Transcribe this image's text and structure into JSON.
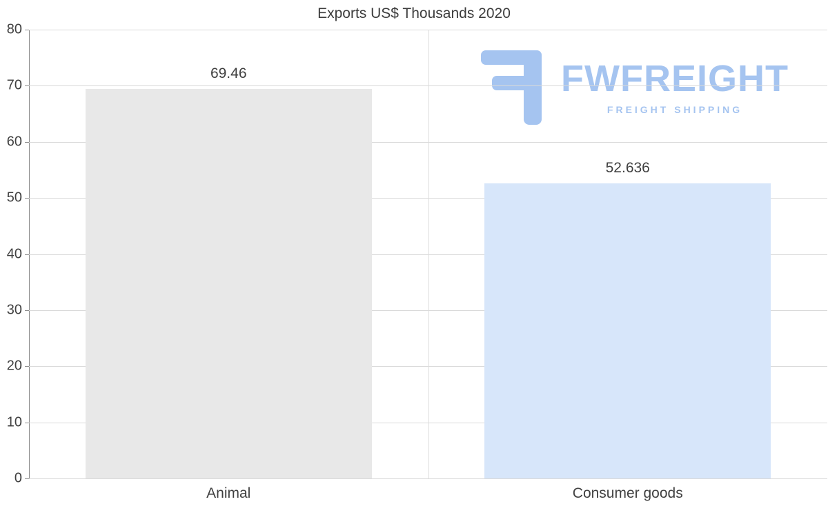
{
  "chart_data": {
    "type": "bar",
    "title": "Exports US$ Thousands 2020",
    "categories": [
      "Animal",
      "Consumer goods"
    ],
    "values": [
      69.46,
      52.636
    ],
    "value_labels": [
      "69.46",
      "52.636"
    ],
    "bar_colors": [
      "#e8e8e8",
      "#d7e6fa"
    ],
    "xlabel": "",
    "ylabel": "",
    "ylim": [
      0,
      80
    ],
    "yticks": [
      0,
      10,
      20,
      30,
      40,
      50,
      60,
      70,
      80
    ],
    "grid": true,
    "legend": "none"
  },
  "watermark": {
    "brand": "FWFREIGHT",
    "tagline": "FREIGHT SHIPPING",
    "color": "#a5c4f0",
    "icon": "fwfreight-logo-icon"
  }
}
